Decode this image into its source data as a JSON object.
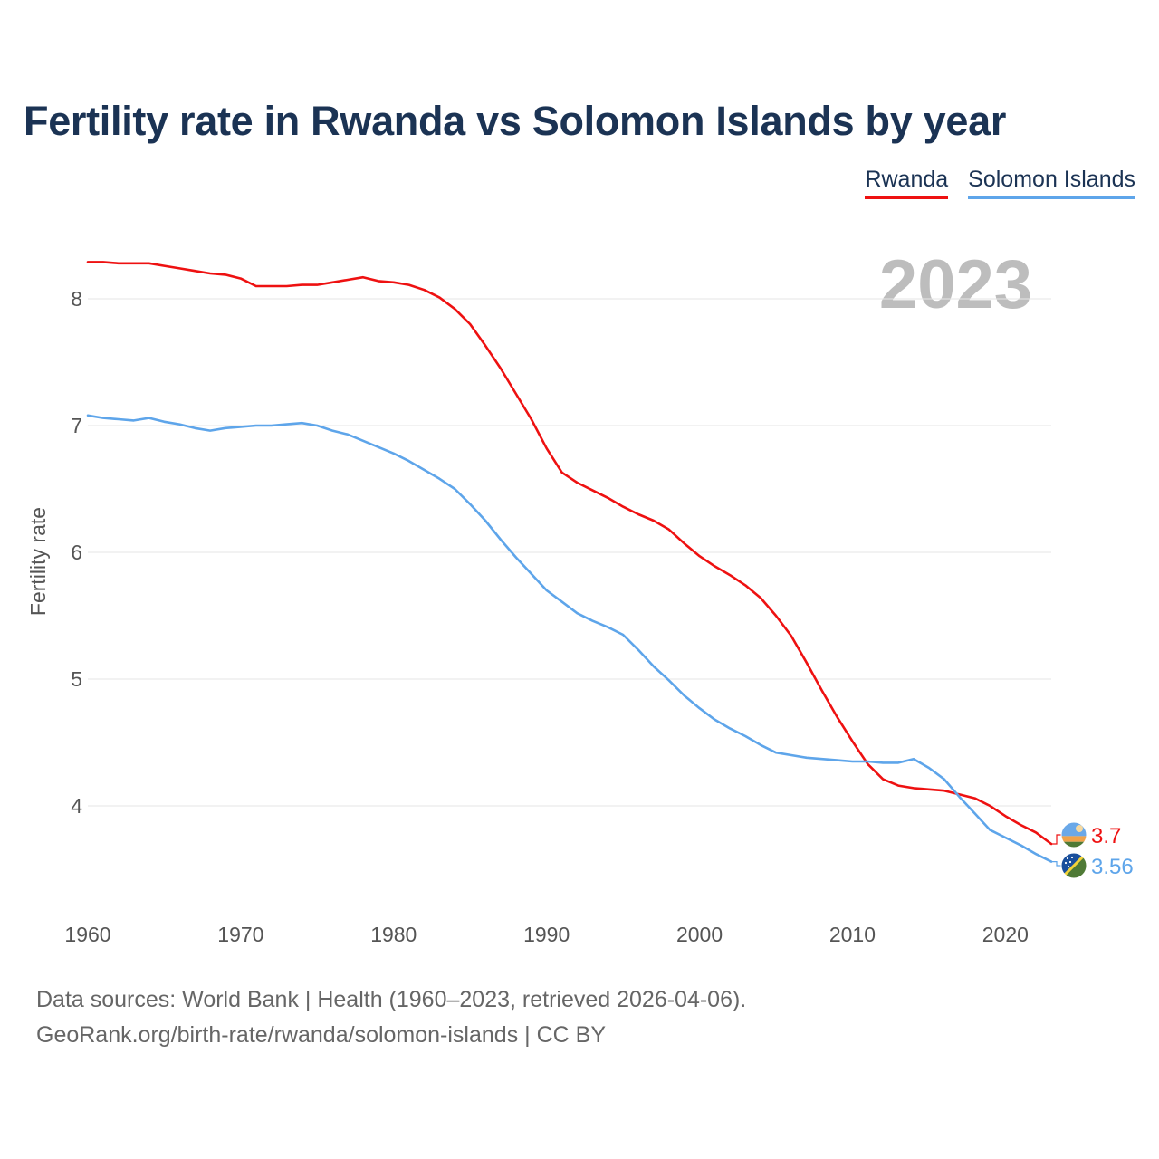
{
  "title": "Fertility rate in Rwanda vs Solomon Islands by year",
  "year_display": "2023",
  "footer": {
    "line1": "Data sources: World Bank | Health (1960–2023, retrieved 2026-04-06).",
    "line2": "GeoRank.org/birth-rate/rwanda/solomon-islands | CC BY"
  },
  "chart_data": {
    "type": "line",
    "title": "Fertility rate in Rwanda vs Solomon Islands by year",
    "xlabel": "",
    "ylabel": "Fertility rate",
    "xlim": [
      1960,
      2023
    ],
    "ylim": [
      3.3,
      8.5
    ],
    "x_ticks": [
      1960,
      1970,
      1980,
      1990,
      2000,
      2010,
      2020
    ],
    "y_ticks": [
      4,
      5,
      6,
      7,
      8
    ],
    "grid": true,
    "legend_position": "top-right",
    "x": [
      1960,
      1961,
      1962,
      1963,
      1964,
      1965,
      1966,
      1967,
      1968,
      1969,
      1970,
      1971,
      1972,
      1973,
      1974,
      1975,
      1976,
      1977,
      1978,
      1979,
      1980,
      1981,
      1982,
      1983,
      1984,
      1985,
      1986,
      1987,
      1988,
      1989,
      1990,
      1991,
      1992,
      1993,
      1994,
      1995,
      1996,
      1997,
      1998,
      1999,
      2000,
      2001,
      2002,
      2003,
      2004,
      2005,
      2006,
      2007,
      2008,
      2009,
      2010,
      2011,
      2012,
      2013,
      2014,
      2015,
      2016,
      2017,
      2018,
      2019,
      2020,
      2021,
      2022,
      2023
    ],
    "series": [
      {
        "name": "Rwanda",
        "color": "#ee1111",
        "end_label": "3.7",
        "values": [
          8.29,
          8.29,
          8.28,
          8.28,
          8.28,
          8.26,
          8.24,
          8.22,
          8.2,
          8.19,
          8.16,
          8.1,
          8.1,
          8.1,
          8.11,
          8.11,
          8.13,
          8.15,
          8.17,
          8.14,
          8.13,
          8.11,
          8.07,
          8.01,
          7.92,
          7.8,
          7.63,
          7.45,
          7.25,
          7.05,
          6.82,
          6.63,
          6.55,
          6.49,
          6.43,
          6.36,
          6.3,
          6.25,
          6.18,
          6.07,
          5.97,
          5.89,
          5.82,
          5.74,
          5.64,
          5.5,
          5.34,
          5.13,
          4.91,
          4.7,
          4.51,
          4.33,
          4.21,
          4.16,
          4.14,
          4.13,
          4.12,
          4.09,
          4.06,
          4.0,
          3.92,
          3.85,
          3.79,
          3.7
        ]
      },
      {
        "name": "Solomon Islands",
        "color": "#5ea5ea",
        "end_label": "3.56",
        "values": [
          7.08,
          7.06,
          7.05,
          7.04,
          7.06,
          7.03,
          7.01,
          6.98,
          6.96,
          6.98,
          6.99,
          7.0,
          7.0,
          7.01,
          7.02,
          7.0,
          6.96,
          6.93,
          6.88,
          6.83,
          6.78,
          6.72,
          6.65,
          6.58,
          6.5,
          6.38,
          6.25,
          6.1,
          5.96,
          5.83,
          5.7,
          5.61,
          5.52,
          5.46,
          5.41,
          5.35,
          5.23,
          5.1,
          4.99,
          4.87,
          4.77,
          4.68,
          4.61,
          4.55,
          4.48,
          4.42,
          4.4,
          4.38,
          4.37,
          4.36,
          4.35,
          4.35,
          4.34,
          4.34,
          4.37,
          4.3,
          4.21,
          4.07,
          3.94,
          3.81,
          3.75,
          3.69,
          3.62,
          3.56
        ]
      }
    ]
  }
}
